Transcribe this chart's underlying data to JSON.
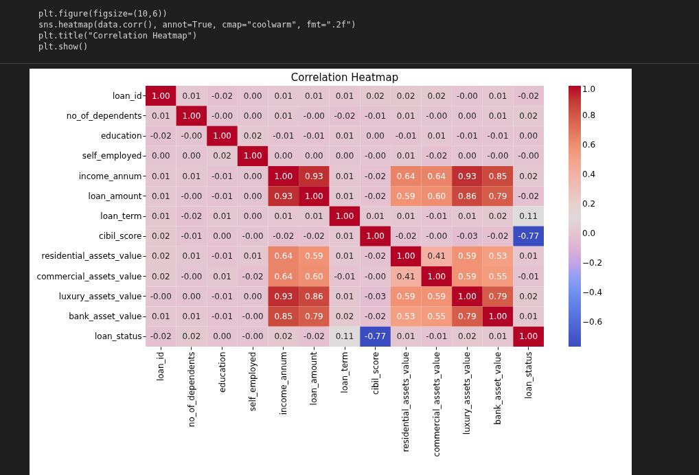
{
  "chart_data": {
    "type": "heatmap",
    "title": "Correlation Heatmap",
    "annotations": [
      "plt.figure(figsize=(10,6))",
      "sns.heatmap(data.corr(), annot=True, cmap=\"coolwarm\", fmt=\".2f\")",
      "plt.title(\"Correlation Heatmap\")",
      "plt.show()"
    ],
    "categories": [
      "loan_id",
      "no_of_dependents",
      "education",
      "self_employed",
      "income_annum",
      "loan_amount",
      "loan_term",
      "cibil_score",
      "residential_assets_value",
      "commercial_assets_value",
      "luxury_assets_value",
      "bank_asset_value",
      "loan_status"
    ],
    "y_categories": [
      "loan_id",
      "no_of_dependents",
      "education",
      "self_employed",
      "income_annum",
      "loan_amount",
      "loan_term",
      "cibil_score",
      "residential_assets_value",
      "commercial_assets_value",
      "luxury_assets_value",
      "bank_asset_value",
      "loan_status"
    ],
    "cells": [
      [
        1.0,
        0.01,
        -0.02,
        0.0,
        0.01,
        0.01,
        0.01,
        0.02,
        0.02,
        0.02,
        -0.0,
        0.01,
        -0.02
      ],
      [
        0.01,
        1.0,
        -0.0,
        0.0,
        0.01,
        -0.0,
        -0.02,
        -0.01,
        0.01,
        -0.0,
        0.0,
        0.01,
        0.02
      ],
      [
        -0.02,
        -0.0,
        1.0,
        0.02,
        -0.01,
        -0.01,
        0.01,
        0.0,
        -0.01,
        0.01,
        -0.01,
        -0.01,
        0.0
      ],
      [
        0.0,
        0.0,
        0.02,
        1.0,
        0.0,
        0.0,
        0.0,
        -0.0,
        0.01,
        -0.02,
        0.0,
        -0.0,
        -0.0
      ],
      [
        0.01,
        0.01,
        -0.01,
        0.0,
        1.0,
        0.93,
        0.01,
        -0.02,
        0.64,
        0.64,
        0.93,
        0.85,
        0.02
      ],
      [
        0.01,
        -0.0,
        -0.01,
        0.0,
        0.93,
        1.0,
        0.01,
        -0.02,
        0.59,
        0.6,
        0.86,
        0.79,
        -0.02
      ],
      [
        0.01,
        -0.02,
        0.01,
        0.0,
        0.01,
        0.01,
        1.0,
        0.01,
        0.01,
        -0.01,
        0.01,
        0.02,
        0.11
      ],
      [
        0.02,
        -0.01,
        0.0,
        -0.0,
        -0.02,
        -0.02,
        0.01,
        1.0,
        -0.02,
        -0.0,
        -0.03,
        -0.02,
        -0.77
      ],
      [
        0.02,
        0.01,
        -0.01,
        0.01,
        0.64,
        0.59,
        0.01,
        -0.02,
        1.0,
        0.41,
        0.59,
        0.53,
        0.01
      ],
      [
        0.02,
        -0.0,
        0.01,
        -0.02,
        0.64,
        0.6,
        -0.01,
        -0.0,
        0.41,
        1.0,
        0.59,
        0.55,
        -0.01
      ],
      [
        -0.0,
        0.0,
        -0.01,
        0.0,
        0.93,
        0.86,
        0.01,
        -0.03,
        0.59,
        0.59,
        1.0,
        0.79,
        0.02
      ],
      [
        0.01,
        0.01,
        -0.01,
        -0.0,
        0.85,
        0.79,
        0.02,
        -0.02,
        0.53,
        0.55,
        0.79,
        1.0,
        0.01
      ],
      [
        -0.02,
        0.02,
        0.0,
        -0.0,
        0.02,
        -0.02,
        0.11,
        -0.77,
        0.01,
        -0.01,
        0.02,
        0.01,
        1.0
      ]
    ],
    "cell_labels": [
      [
        "1.00",
        "0.01",
        "-0.02",
        "0.00",
        "0.01",
        "0.01",
        "0.01",
        "0.02",
        "0.02",
        "0.02",
        "-0.00",
        "0.01",
        "-0.02"
      ],
      [
        "0.01",
        "1.00",
        "-0.00",
        "0.00",
        "0.01",
        "-0.00",
        "-0.02",
        "-0.01",
        "0.01",
        "-0.00",
        "0.00",
        "0.01",
        "0.02"
      ],
      [
        "-0.02",
        "-0.00",
        "1.00",
        "0.02",
        "-0.01",
        "-0.01",
        "0.01",
        "0.00",
        "-0.01",
        "0.01",
        "-0.01",
        "-0.01",
        "0.00"
      ],
      [
        "0.00",
        "0.00",
        "0.02",
        "1.00",
        "0.00",
        "0.00",
        "0.00",
        "-0.00",
        "0.01",
        "-0.02",
        "0.00",
        "-0.00",
        "-0.00"
      ],
      [
        "0.01",
        "0.01",
        "-0.01",
        "0.00",
        "1.00",
        "0.93",
        "0.01",
        "-0.02",
        "0.64",
        "0.64",
        "0.93",
        "0.85",
        "0.02"
      ],
      [
        "0.01",
        "-0.00",
        "-0.01",
        "0.00",
        "0.93",
        "1.00",
        "0.01",
        "-0.02",
        "0.59",
        "0.60",
        "0.86",
        "0.79",
        "-0.02"
      ],
      [
        "0.01",
        "-0.02",
        "0.01",
        "0.00",
        "0.01",
        "0.01",
        "1.00",
        "0.01",
        "0.01",
        "-0.01",
        "0.01",
        "0.02",
        "0.11"
      ],
      [
        "0.02",
        "-0.01",
        "0.00",
        "-0.00",
        "-0.02",
        "-0.02",
        "0.01",
        "1.00",
        "-0.02",
        "-0.00",
        "-0.03",
        "-0.02",
        "-0.77"
      ],
      [
        "0.02",
        "0.01",
        "-0.01",
        "0.01",
        "0.64",
        "0.59",
        "0.01",
        "-0.02",
        "1.00",
        "0.41",
        "0.59",
        "0.53",
        "0.01"
      ],
      [
        "0.02",
        "-0.00",
        "0.01",
        "-0.02",
        "0.64",
        "0.60",
        "-0.01",
        "-0.00",
        "0.41",
        "1.00",
        "0.59",
        "0.55",
        "-0.01"
      ],
      [
        "-0.00",
        "0.00",
        "-0.01",
        "0.00",
        "0.93",
        "0.86",
        "0.01",
        "-0.03",
        "0.59",
        "0.59",
        "1.00",
        "0.79",
        "0.02"
      ],
      [
        "0.01",
        "0.01",
        "-0.01",
        "-0.00",
        "0.85",
        "0.79",
        "0.02",
        "-0.02",
        "0.53",
        "0.55",
        "0.79",
        "1.00",
        "0.01"
      ],
      [
        "-0.02",
        "0.02",
        "0.00",
        "-0.00",
        "0.02",
        "-0.02",
        "0.11",
        "-0.77",
        "0.01",
        "-0.01",
        "0.02",
        "0.01",
        "1.00"
      ]
    ],
    "clim": [
      -0.77,
      1.0
    ],
    "cticks": [
      {
        "value": -0.6,
        "label": "−0.6"
      },
      {
        "value": -0.4,
        "label": "−0.4"
      },
      {
        "value": -0.2,
        "label": "−0.2"
      },
      {
        "value": 0,
        "label": "0.0"
      },
      0.2,
      0.4,
      0.6,
      0.8,
      {
        "value": 1.0,
        "label": "1.0"
      }
    ]
  }
}
